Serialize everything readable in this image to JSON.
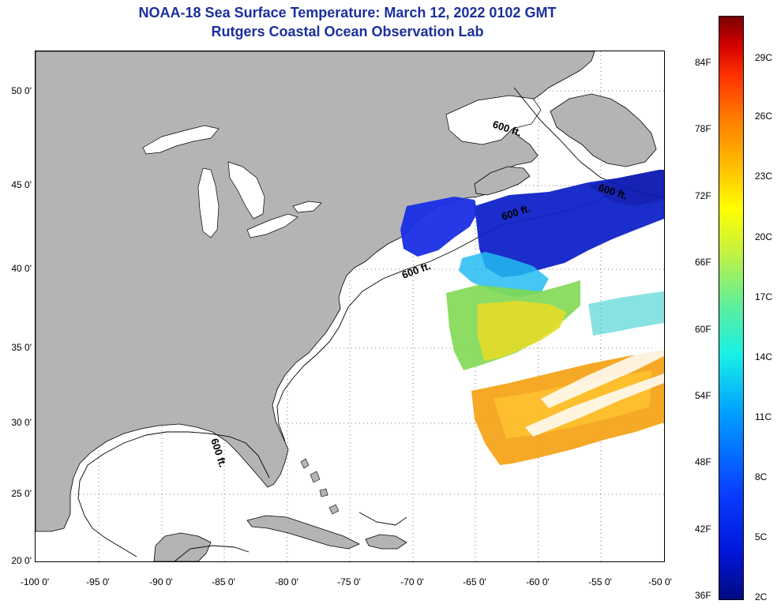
{
  "header": {
    "title": "NOAA-18 Sea Surface Temperature:  March 12, 2022 0102 GMT",
    "subtitle": "Rutgers Coastal Ocean Observation Lab"
  },
  "map": {
    "lat_labels": [
      "50 0'",
      "45 0'",
      "40 0'",
      "35 0'",
      "30 0'",
      "25 0'",
      "20 0'"
    ],
    "lon_labels": [
      "-100 0'",
      "-95 0'",
      "-90 0'",
      "-85 0'",
      "-80 0'",
      "-75 0'",
      "-70 0'",
      "-65 0'",
      "-60 0'",
      "-55 0'",
      "-50 0'"
    ],
    "contour_label": "600 ft.",
    "colors": {
      "land": "#b4b4b4",
      "ocean_no_data": "#ffffff",
      "gridline": "#555555"
    }
  },
  "colorbar": {
    "fahrenheit_labels": [
      "84F",
      "78F",
      "72F",
      "66F",
      "60F",
      "54F",
      "48F",
      "42F",
      "36F"
    ],
    "celsius_labels": [
      "29C",
      "26C",
      "23C",
      "20C",
      "17C",
      "14C",
      "11C",
      "8C",
      "5C",
      "2C"
    ]
  }
}
